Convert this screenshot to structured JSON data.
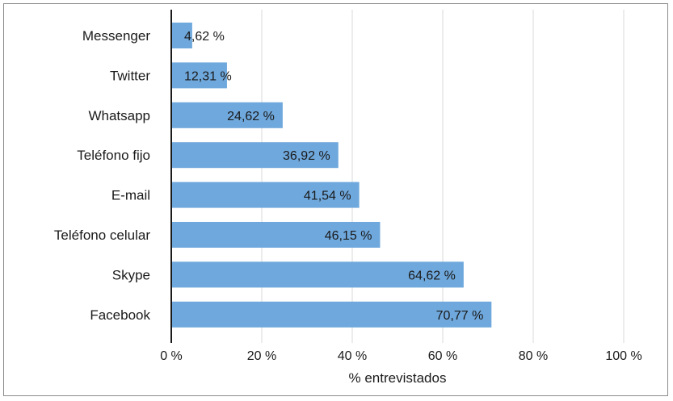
{
  "chart_data": {
    "type": "bar",
    "orientation": "horizontal",
    "categories": [
      "Messenger",
      "Twitter",
      "Whatsapp",
      "Teléfono fijo",
      "E-mail",
      "Teléfono celular",
      "Skype",
      "Facebook"
    ],
    "values": [
      4.62,
      12.31,
      24.62,
      36.92,
      41.54,
      46.15,
      64.62,
      70.77
    ],
    "data_labels": [
      "4,62 %",
      "12,31 %",
      "24,62 %",
      "36,92 %",
      "41,54 %",
      "46,15 %",
      "64,62 %",
      "70,77 %"
    ],
    "xlim": [
      0,
      100
    ],
    "xticks": [
      0,
      20,
      40,
      60,
      80,
      100
    ],
    "xtick_labels": [
      "0 %",
      "20 %",
      "40 %",
      "60 %",
      "80 %",
      "100 %"
    ],
    "xlabel": "% entrevistados",
    "ylabel": "",
    "title": "",
    "grid": "vertical",
    "colors": {
      "bar": "#6fa8dc",
      "grid": "#d9d9d9",
      "axis": "#1a1a1a",
      "frame": "#8c8c8c"
    }
  }
}
